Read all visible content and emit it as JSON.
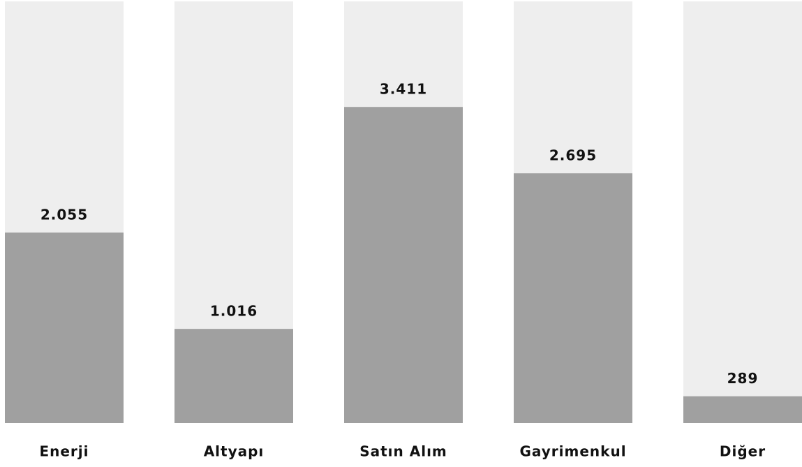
{
  "chart_data": {
    "type": "bar",
    "categories": [
      "Enerji",
      "Altyapı",
      "Satın Alım",
      "Gayrimenkul",
      "Diğer"
    ],
    "values": [
      2055,
      1016,
      3411,
      2695,
      289
    ],
    "value_labels": [
      "2.055",
      "1.016",
      "3.411",
      "2.695",
      "289"
    ],
    "color": "#a0a0a0",
    "track_color": "#eeeeee",
    "ylim": [
      0,
      4550
    ]
  }
}
